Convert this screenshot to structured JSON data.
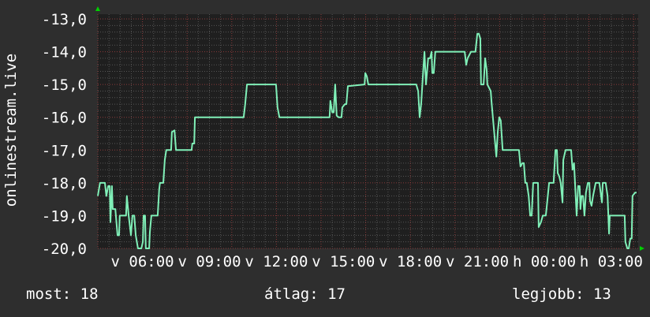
{
  "chart_data": {
    "type": "line",
    "title": "",
    "ylabel": "onlinestream.live",
    "xlabel": "",
    "ylim": [
      -20,
      -13
    ],
    "xlim": [
      "04:00",
      "04:12"
    ],
    "y_ticks": [
      "-13,0",
      "-14,0",
      "-15,0",
      "-16,0",
      "-17,0",
      "-18,0",
      "-19,0",
      "-20,0"
    ],
    "x_ticks": [
      {
        "label": "v 06:00",
        "time": "06:00"
      },
      {
        "label": "v 09:00",
        "time": "09:00"
      },
      {
        "label": "v 12:00",
        "time": "12:00"
      },
      {
        "label": "v 15:00",
        "time": "15:00"
      },
      {
        "label": "v 18:00",
        "time": "18:00"
      },
      {
        "label": "v 21:00",
        "time": "21:00"
      },
      {
        "label": "h 00:00",
        "time": "00:00"
      },
      {
        "label": "h 03:00",
        "time": "03:00"
      }
    ],
    "grid": true,
    "colors": {
      "line": "#80f0b8",
      "background": "#2e2e2e",
      "plot": "#1f1f1f",
      "major_grid": "#8a3a3a",
      "minor_grid": "#555555",
      "arrow": "#00d000"
    },
    "series": [
      {
        "points": [
          [
            "04:00",
            -18.4
          ],
          [
            "04:06",
            -18.0
          ],
          [
            "04:19",
            -18.0
          ],
          [
            "04:23",
            -18.4
          ],
          [
            "04:28",
            -18.1
          ],
          [
            "04:32",
            -18.1
          ],
          [
            "04:34",
            -19.2
          ],
          [
            "04:38",
            -18.1
          ],
          [
            "04:40",
            -18.8
          ],
          [
            "04:47",
            -18.8
          ],
          [
            "04:53",
            -19.6
          ],
          [
            "04:57",
            -19.6
          ],
          [
            "04:59",
            -19.0
          ],
          [
            "05:16",
            -19.0
          ],
          [
            "05:18",
            -18.4
          ],
          [
            "05:23",
            -19.0
          ],
          [
            "05:29",
            -19.6
          ],
          [
            "05:33",
            -19.0
          ],
          [
            "05:38",
            -19.0
          ],
          [
            "05:42",
            -19.6
          ],
          [
            "05:48",
            -20.0
          ],
          [
            "05:57",
            -20.0
          ],
          [
            "06:01",
            -19.8
          ],
          [
            "06:03",
            -19.0
          ],
          [
            "06:07",
            -19.0
          ],
          [
            "06:09",
            -20.0
          ],
          [
            "06:18",
            -20.0
          ],
          [
            "06:20",
            -19.5
          ],
          [
            "06:24",
            -19.0
          ],
          [
            "06:41",
            -19.0
          ],
          [
            "06:45",
            -18.2
          ],
          [
            "06:47",
            -18.0
          ],
          [
            "06:56",
            -18.0
          ],
          [
            "07:00",
            -17.3
          ],
          [
            "07:04",
            -17.0
          ],
          [
            "07:17",
            -17.0
          ],
          [
            "07:19",
            -16.45
          ],
          [
            "07:26",
            -16.4
          ],
          [
            "07:30",
            -17.0
          ],
          [
            "08:12",
            -17.0
          ],
          [
            "08:14",
            -16.8
          ],
          [
            "08:19",
            -16.8
          ],
          [
            "08:21",
            -16.0
          ],
          [
            "10:32",
            -16.0
          ],
          [
            "10:36",
            -15.6
          ],
          [
            "10:41",
            -15.0
          ],
          [
            "11:59",
            -15.0
          ],
          [
            "12:03",
            -15.7
          ],
          [
            "12:08",
            -16.0
          ],
          [
            "14:23",
            -16.0
          ],
          [
            "14:25",
            -15.5
          ],
          [
            "14:30",
            -15.85
          ],
          [
            "14:34",
            -15.85
          ],
          [
            "14:38",
            -15.0
          ],
          [
            "14:42",
            -15.95
          ],
          [
            "14:47",
            -16.0
          ],
          [
            "14:55",
            -16.0
          ],
          [
            "14:57",
            -15.7
          ],
          [
            "15:04",
            -15.6
          ],
          [
            "15:08",
            -15.6
          ],
          [
            "15:12",
            -15.05
          ],
          [
            "15:57",
            -15.0
          ],
          [
            "15:59",
            -14.65
          ],
          [
            "16:03",
            -14.75
          ],
          [
            "16:07",
            -15.0
          ],
          [
            "18:16",
            -15.0
          ],
          [
            "18:21",
            -15.2
          ],
          [
            "18:25",
            -16.0
          ],
          [
            "18:29",
            -15.6
          ],
          [
            "18:33",
            -14.85
          ],
          [
            "18:38",
            -14.0
          ],
          [
            "18:42",
            -15.0
          ],
          [
            "18:48",
            -14.2
          ],
          [
            "18:53",
            -14.2
          ],
          [
            "18:57",
            -14.0
          ],
          [
            "18:59",
            -14.65
          ],
          [
            "19:03",
            -14.65
          ],
          [
            "19:07",
            -14.0
          ],
          [
            "20:26",
            -14.0
          ],
          [
            "20:30",
            -14.4
          ],
          [
            "20:34",
            -14.2
          ],
          [
            "20:43",
            -14.0
          ],
          [
            "20:55",
            -14.0
          ],
          [
            "21:00",
            -13.45
          ],
          [
            "21:04",
            -13.45
          ],
          [
            "21:08",
            -13.6
          ],
          [
            "21:10",
            -15.0
          ],
          [
            "21:17",
            -15.0
          ],
          [
            "21:21",
            -14.2
          ],
          [
            "21:25",
            -14.55
          ],
          [
            "21:27",
            -15.0
          ],
          [
            "21:36",
            -15.2
          ],
          [
            "21:38",
            -15.5
          ],
          [
            "21:44",
            -16.3
          ],
          [
            "21:51",
            -17.2
          ],
          [
            "21:55",
            -16.45
          ],
          [
            "21:59",
            -16.0
          ],
          [
            "22:03",
            -16.1
          ],
          [
            "22:08",
            -17.0
          ],
          [
            "22:52",
            -17.0
          ],
          [
            "22:56",
            -17.5
          ],
          [
            "23:01",
            -17.4
          ],
          [
            "23:05",
            -17.4
          ],
          [
            "23:09",
            -18.0
          ],
          [
            "23:13",
            -18.0
          ],
          [
            "23:18",
            -18.4
          ],
          [
            "23:22",
            -19.0
          ],
          [
            "23:26",
            -19.0
          ],
          [
            "23:30",
            -18.0
          ],
          [
            "23:43",
            -18.0
          ],
          [
            "23:45",
            -19.35
          ],
          [
            "23:51",
            -19.2
          ],
          [
            "23:56",
            -19.0
          ],
          [
            "00:04",
            -19.0
          ],
          [
            "00:06",
            -18.8
          ],
          [
            "00:13",
            -18.0
          ],
          [
            "00:25",
            -18.0
          ],
          [
            "00:30",
            -17.0
          ],
          [
            "00:34",
            -17.0
          ],
          [
            "00:36",
            -17.7
          ],
          [
            "00:40",
            -17.8
          ],
          [
            "00:44",
            -18.0
          ],
          [
            "00:49",
            -18.6
          ],
          [
            "00:51",
            -17.3
          ],
          [
            "00:57",
            -17.0
          ],
          [
            "01:12",
            -17.0
          ],
          [
            "01:16",
            -17.6
          ],
          [
            "01:20",
            -17.4
          ],
          [
            "01:27",
            -19.0
          ],
          [
            "01:31",
            -18.1
          ],
          [
            "01:35",
            -18.1
          ],
          [
            "01:37",
            -18.8
          ],
          [
            "01:40",
            -18.4
          ],
          [
            "01:44",
            -18.4
          ],
          [
            "01:48",
            -19.0
          ],
          [
            "01:52",
            -18.3
          ],
          [
            "01:57",
            -18.0
          ],
          [
            "02:01",
            -18.0
          ],
          [
            "02:03",
            -18.55
          ],
          [
            "02:07",
            -18.7
          ],
          [
            "02:11",
            -18.4
          ],
          [
            "02:18",
            -18.0
          ],
          [
            "02:28",
            -18.0
          ],
          [
            "02:35",
            -18.6
          ],
          [
            "02:37",
            -18.0
          ],
          [
            "02:45",
            -18.0
          ],
          [
            "02:50",
            -18.4
          ],
          [
            "02:54",
            -19.55
          ],
          [
            "02:56",
            -19.0
          ],
          [
            "03:36",
            -19.0
          ],
          [
            "03:38",
            -19.8
          ],
          [
            "03:43",
            -20.0
          ],
          [
            "03:47",
            -20.0
          ],
          [
            "03:51",
            -19.7
          ],
          [
            "03:55",
            -19.7
          ],
          [
            "03:57",
            -18.4
          ],
          [
            "04:04",
            -18.3
          ],
          [
            "04:08",
            -18.3
          ]
        ]
      }
    ],
    "legend": {
      "current_label": "most: 18",
      "average_label": "átlag: 17",
      "best_label": "legjobb: 13"
    }
  }
}
